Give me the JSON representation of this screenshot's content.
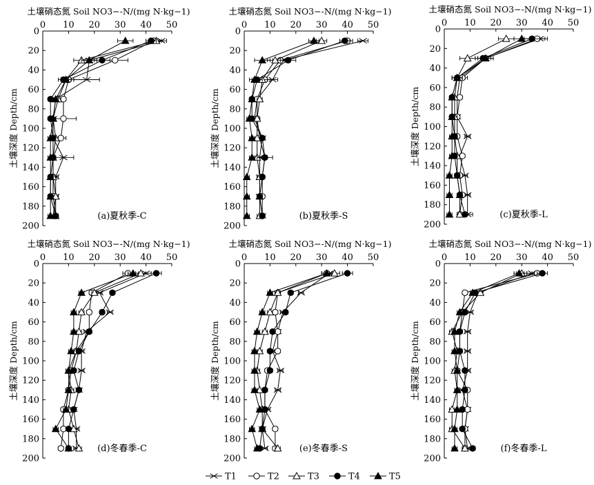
{
  "figure": {
    "legend": [
      "T1",
      "T2",
      "T3",
      "T4",
      "T5"
    ]
  },
  "chart_data": [
    {
      "type": "line",
      "panel": "(a)夏秋季-C",
      "xlabel": "土壤硝态氮 Soil NO3−-N/(mg N·kg−1)",
      "ylabel": "土壤深度 Depth/cm",
      "xlim": [
        0,
        50
      ],
      "ylim": [
        200,
        0
      ],
      "xticks": [
        0,
        10,
        20,
        30,
        40,
        50
      ],
      "yticks": [
        0,
        20,
        40,
        60,
        80,
        100,
        120,
        140,
        160,
        180,
        200
      ],
      "depth": [
        10,
        30,
        50,
        70,
        90,
        110,
        130,
        150,
        170,
        190
      ],
      "series": [
        {
          "name": "T1",
          "values": [
            46,
            18,
            17,
            5,
            4,
            4,
            8,
            5,
            5,
            4
          ],
          "err": [
            2,
            3,
            5,
            1,
            1,
            1,
            4,
            1,
            1,
            1
          ]
        },
        {
          "name": "T2",
          "values": [
            43,
            28,
            10,
            8,
            8,
            7,
            4,
            4,
            4,
            5
          ],
          "err": [
            2,
            5,
            2,
            1,
            5,
            2,
            1,
            1,
            1,
            1
          ]
        },
        {
          "name": "T3",
          "values": [
            44,
            15,
            9,
            6,
            4,
            5,
            4,
            4,
            5,
            5
          ],
          "err": [
            2,
            3,
            2,
            1,
            1,
            1,
            1,
            1,
            1,
            1
          ]
        },
        {
          "name": "T4",
          "values": [
            42,
            23,
            8,
            3,
            3,
            4,
            4,
            3,
            3,
            5
          ],
          "err": [
            2,
            3,
            2,
            1,
            1,
            1,
            1,
            1,
            1,
            1
          ]
        },
        {
          "name": "T5",
          "values": [
            32,
            18,
            9,
            5,
            4,
            3,
            3,
            3,
            3,
            3
          ],
          "err": [
            3,
            3,
            2,
            1,
            1,
            1,
            1,
            1,
            1,
            1
          ]
        }
      ]
    },
    {
      "type": "line",
      "panel": "(b)夏秋季-S",
      "xlabel": "土壤硝态氮 Soil NO3−-N/(mg N·kg−1)",
      "ylabel": "土壤深度 Depth/cm",
      "xlim": [
        0,
        50
      ],
      "ylim": [
        200,
        0
      ],
      "xticks": [
        0,
        10,
        20,
        30,
        40,
        50
      ],
      "yticks": [
        0,
        20,
        40,
        60,
        80,
        100,
        120,
        140,
        160,
        180,
        200
      ],
      "depth": [
        10,
        30,
        50,
        70,
        90,
        110,
        130,
        150,
        170,
        190
      ],
      "series": [
        {
          "name": "T1",
          "values": [
            46,
            15,
            11,
            5,
            4,
            7,
            6,
            6,
            6,
            7
          ],
          "err": [
            2,
            3,
            2,
            1,
            1,
            1,
            1,
            1,
            1,
            1
          ]
        },
        {
          "name": "T2",
          "values": [
            40,
            14,
            8,
            5,
            5,
            6,
            8,
            7,
            7,
            7
          ],
          "err": [
            2,
            3,
            2,
            1,
            1,
            1,
            1,
            1,
            1,
            1
          ]
        },
        {
          "name": "T3",
          "values": [
            30,
            12,
            7,
            6,
            5,
            5,
            5,
            6,
            6,
            6
          ],
          "err": [
            2,
            3,
            2,
            1,
            1,
            1,
            1,
            1,
            1,
            1
          ]
        },
        {
          "name": "T4",
          "values": [
            39,
            17,
            5,
            3,
            3,
            7,
            8,
            7,
            6,
            7
          ],
          "err": [
            2,
            3,
            2,
            1,
            1,
            1,
            3,
            1,
            1,
            1
          ]
        },
        {
          "name": "T5",
          "values": [
            27,
            7,
            4,
            3,
            2,
            3,
            3,
            1,
            1,
            1
          ],
          "err": [
            2,
            3,
            2,
            1,
            1,
            1,
            1,
            1,
            1,
            1
          ]
        }
      ]
    },
    {
      "type": "line",
      "panel": "(c)夏秋季-L",
      "xlabel": "土壤硝态氮 Soil NO3−-N/(mg N·kg−1)",
      "ylabel": "土壤深度 Depth/cm",
      "xlim": [
        0,
        50
      ],
      "ylim": [
        200,
        0
      ],
      "xticks": [
        0,
        10,
        20,
        30,
        40,
        50
      ],
      "yticks": [
        0,
        20,
        40,
        60,
        80,
        100,
        120,
        140,
        160,
        180,
        200
      ],
      "depth": [
        10,
        30,
        50,
        70,
        90,
        110,
        130,
        150,
        170,
        190
      ],
      "series": [
        {
          "name": "T1",
          "values": [
            37,
            16,
            6,
            5,
            5,
            9,
            6,
            8,
            9,
            9
          ],
          "err": [
            3,
            3,
            2,
            1,
            1,
            1,
            1,
            1,
            1,
            2
          ]
        },
        {
          "name": "T2",
          "values": [
            36,
            16,
            7,
            6,
            5,
            5,
            7,
            6,
            7,
            6
          ],
          "err": [
            3,
            3,
            2,
            1,
            1,
            1,
            1,
            1,
            1,
            1
          ]
        },
        {
          "name": "T3",
          "values": [
            24,
            9,
            5,
            4,
            4,
            4,
            5,
            5,
            6,
            6
          ],
          "err": [
            3,
            3,
            2,
            1,
            1,
            1,
            1,
            1,
            1,
            1
          ]
        },
        {
          "name": "T4",
          "values": [
            34,
            15,
            5,
            3,
            3,
            4,
            4,
            5,
            6,
            8
          ],
          "err": [
            3,
            3,
            2,
            1,
            1,
            1,
            1,
            1,
            1,
            1
          ]
        },
        {
          "name": "T5",
          "values": [
            30,
            16,
            5,
            3,
            3,
            3,
            3,
            2,
            2,
            2
          ],
          "err": [
            3,
            3,
            2,
            1,
            1,
            1,
            1,
            1,
            1,
            1
          ]
        }
      ]
    },
    {
      "type": "line",
      "panel": "(d)冬春季-C",
      "xlabel": "土壤硝态氮 Soil NO3−-N/(mg N·kg−1)",
      "ylabel": "土壤深度 Depth/cm",
      "xlim": [
        0,
        50
      ],
      "ylim": [
        200,
        0
      ],
      "xticks": [
        0,
        10,
        20,
        30,
        40,
        50
      ],
      "yticks": [
        0,
        20,
        40,
        60,
        80,
        100,
        120,
        140,
        160,
        180,
        200
      ],
      "depth": [
        10,
        30,
        50,
        70,
        90,
        110,
        130,
        150,
        170,
        190
      ],
      "series": [
        {
          "name": "T1",
          "values": [
            40,
            22,
            26,
            17,
            15,
            15,
            14,
            12,
            13,
            13
          ],
          "err": [
            2,
            1,
            1,
            1,
            1,
            1,
            1,
            1,
            1,
            1
          ]
        },
        {
          "name": "T2",
          "values": [
            33,
            19,
            18,
            18,
            13,
            11,
            10,
            8,
            8,
            7
          ],
          "err": [
            2,
            1,
            1,
            1,
            1,
            1,
            1,
            1,
            1,
            1
          ]
        },
        {
          "name": "T3",
          "values": [
            38,
            20,
            15,
            14,
            13,
            10,
            11,
            10,
            12,
            14
          ],
          "err": [
            2,
            1,
            1,
            1,
            1,
            1,
            1,
            1,
            1,
            1
          ]
        },
        {
          "name": "T4",
          "values": [
            44,
            27,
            23,
            18,
            14,
            12,
            14,
            12,
            10,
            10
          ],
          "err": [
            2,
            1,
            1,
            1,
            1,
            1,
            1,
            1,
            1,
            1
          ]
        },
        {
          "name": "T5",
          "values": [
            35,
            15,
            12,
            12,
            11,
            10,
            10,
            9,
            5,
            10
          ],
          "err": [
            2,
            1,
            1,
            1,
            1,
            1,
            1,
            1,
            1,
            1
          ]
        }
      ]
    },
    {
      "type": "line",
      "panel": "(e)冬春季-S",
      "xlabel": "土壤硝态氮 Soil NO3−-N/(mg N·kg−1)",
      "ylabel": "土壤深度 Depth/cm",
      "xlim": [
        0,
        50
      ],
      "ylim": [
        200,
        0
      ],
      "xticks": [
        0,
        10,
        20,
        30,
        40,
        50
      ],
      "yticks": [
        0,
        20,
        40,
        60,
        80,
        100,
        120,
        140,
        160,
        180,
        200
      ],
      "depth": [
        10,
        30,
        50,
        70,
        90,
        110,
        130,
        150,
        170,
        190
      ],
      "series": [
        {
          "name": "T1",
          "values": [
            33,
            22,
            15,
            13,
            11,
            14,
            13,
            9,
            7,
            8
          ],
          "err": [
            2,
            1,
            1,
            1,
            1,
            1,
            1,
            1,
            1,
            1
          ]
        },
        {
          "name": "T2",
          "values": [
            32,
            13,
            12,
            13,
            13,
            9,
            8,
            8,
            12,
            12
          ],
          "err": [
            2,
            1,
            1,
            1,
            1,
            1,
            1,
            1,
            1,
            1
          ]
        },
        {
          "name": "T3",
          "values": [
            35,
            13,
            10,
            8,
            6,
            5,
            6,
            7,
            7,
            13
          ],
          "err": [
            2,
            1,
            1,
            1,
            1,
            1,
            1,
            1,
            1,
            1
          ]
        },
        {
          "name": "T4",
          "values": [
            40,
            18,
            16,
            11,
            10,
            10,
            8,
            8,
            7,
            6
          ],
          "err": [
            2,
            1,
            1,
            1,
            1,
            1,
            1,
            1,
            1,
            1
          ]
        },
        {
          "name": "T5",
          "values": [
            32,
            10,
            7,
            5,
            4,
            4,
            4,
            6,
            3,
            5
          ],
          "err": [
            2,
            1,
            1,
            1,
            1,
            1,
            1,
            1,
            1,
            1
          ]
        }
      ]
    },
    {
      "type": "line",
      "panel": "(f)冬春季-L",
      "xlabel": "土壤硝态氮 Soil NO3−-N/(mg N·kg−1)",
      "ylabel": "土壤深度 Depth/cm",
      "xlim": [
        0,
        50
      ],
      "ylim": [
        200,
        0
      ],
      "xticks": [
        0,
        10,
        20,
        30,
        40,
        50
      ],
      "yticks": [
        0,
        20,
        40,
        60,
        80,
        100,
        120,
        140,
        160,
        180,
        200
      ],
      "depth": [
        10,
        30,
        50,
        70,
        90,
        110,
        130,
        150,
        170,
        190
      ],
      "series": [
        {
          "name": "T1",
          "values": [
            34,
            13,
            10,
            9,
            9,
            9,
            7,
            9,
            8,
            9
          ],
          "err": [
            2,
            1,
            1,
            1,
            1,
            1,
            1,
            1,
            1,
            1
          ]
        },
        {
          "name": "T2",
          "values": [
            36,
            8,
            7,
            6,
            6,
            5,
            9,
            9,
            8,
            8
          ],
          "err": [
            2,
            1,
            1,
            1,
            1,
            1,
            1,
            1,
            1,
            1
          ]
        },
        {
          "name": "T3",
          "values": [
            30,
            14,
            7,
            3,
            5,
            4,
            5,
            3,
            3,
            8
          ],
          "err": [
            2,
            1,
            1,
            1,
            1,
            1,
            1,
            1,
            1,
            1
          ]
        },
        {
          "name": "T4",
          "values": [
            38,
            12,
            8,
            6,
            6,
            8,
            8,
            7,
            7,
            11
          ],
          "err": [
            2,
            1,
            1,
            1,
            1,
            1,
            1,
            1,
            1,
            1
          ]
        },
        {
          "name": "T5",
          "values": [
            29,
            11,
            6,
            4,
            4,
            5,
            5,
            5,
            4,
            4
          ],
          "err": [
            2,
            1,
            1,
            1,
            1,
            1,
            1,
            1,
            1,
            1
          ]
        }
      ]
    }
  ]
}
